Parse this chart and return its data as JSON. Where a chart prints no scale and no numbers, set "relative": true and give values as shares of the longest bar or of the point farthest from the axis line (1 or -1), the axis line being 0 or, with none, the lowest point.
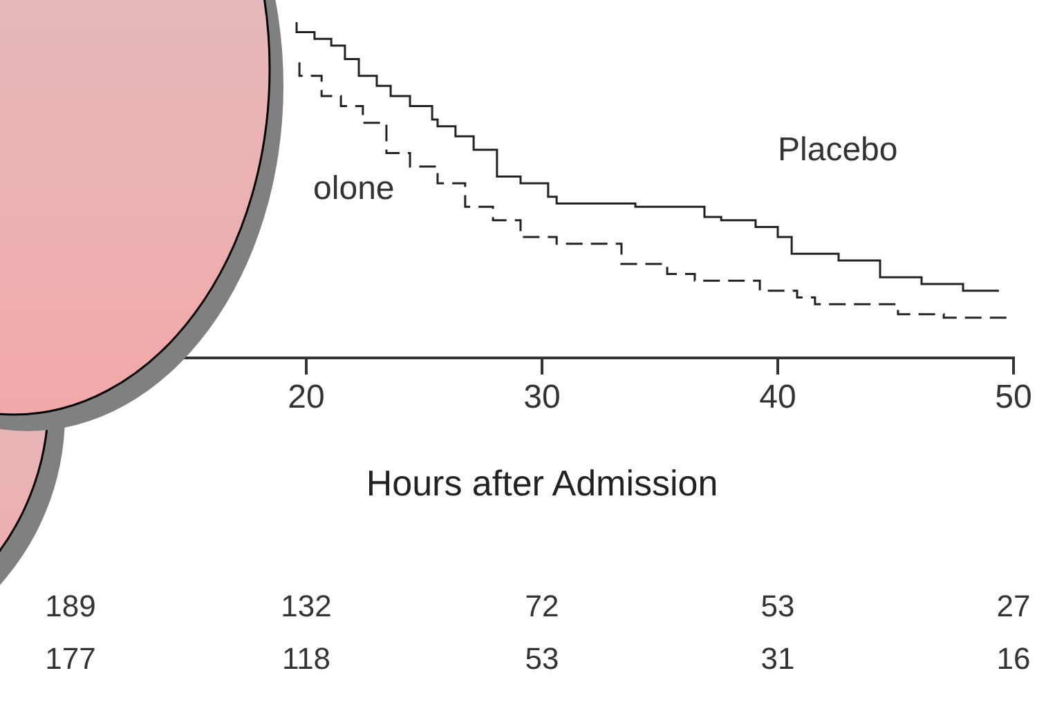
{
  "chart_data": {
    "type": "step",
    "relative": true,
    "xlabel": "Hours after Admission",
    "xlim": [
      10,
      50
    ],
    "xticks": [
      20,
      30,
      40,
      50
    ],
    "legend": false,
    "series": [
      {
        "name": "Placebo",
        "color": "#222222",
        "line_style": "solid",
        "x": [
          19.59,
          20.35,
          21.06,
          21.64,
          22.23,
          22.99,
          23.58,
          24.4,
          25.34,
          25.57,
          26.33,
          27.1,
          28.09,
          29.09,
          30.26,
          30.62,
          33.96,
          36.89,
          37.6,
          39.06,
          40.0,
          40.59,
          42.58,
          44.34,
          46.1,
          47.86,
          49.03,
          49.38
        ],
        "values": [
          1.0,
          0.97,
          0.95,
          0.93,
          0.89,
          0.84,
          0.81,
          0.78,
          0.75,
          0.71,
          0.69,
          0.66,
          0.62,
          0.54,
          0.52,
          0.48,
          0.46,
          0.45,
          0.42,
          0.41,
          0.39,
          0.36,
          0.31,
          0.29,
          0.24,
          0.22,
          0.2,
          0.2
        ]
      },
      {
        "name": "olone",
        "color": "#222222",
        "line_style": "dashed",
        "x": [
          19.71,
          20.65,
          21.47,
          22.4,
          23.4,
          24.4,
          25.57,
          26.74,
          27.92,
          29.09,
          30.62,
          33.37,
          35.31,
          36.48,
          39.24,
          40.82,
          41.58,
          45.1,
          47.04,
          49.79
        ],
        "values": [
          0.88,
          0.84,
          0.78,
          0.75,
          0.7,
          0.61,
          0.57,
          0.52,
          0.45,
          0.41,
          0.36,
          0.34,
          0.28,
          0.25,
          0.23,
          0.2,
          0.18,
          0.16,
          0.13,
          0.12
        ]
      }
    ],
    "annotations": [
      "189",
      "132",
      "72",
      "53",
      "27",
      "177",
      "118",
      "53",
      "31",
      "16"
    ]
  }
}
